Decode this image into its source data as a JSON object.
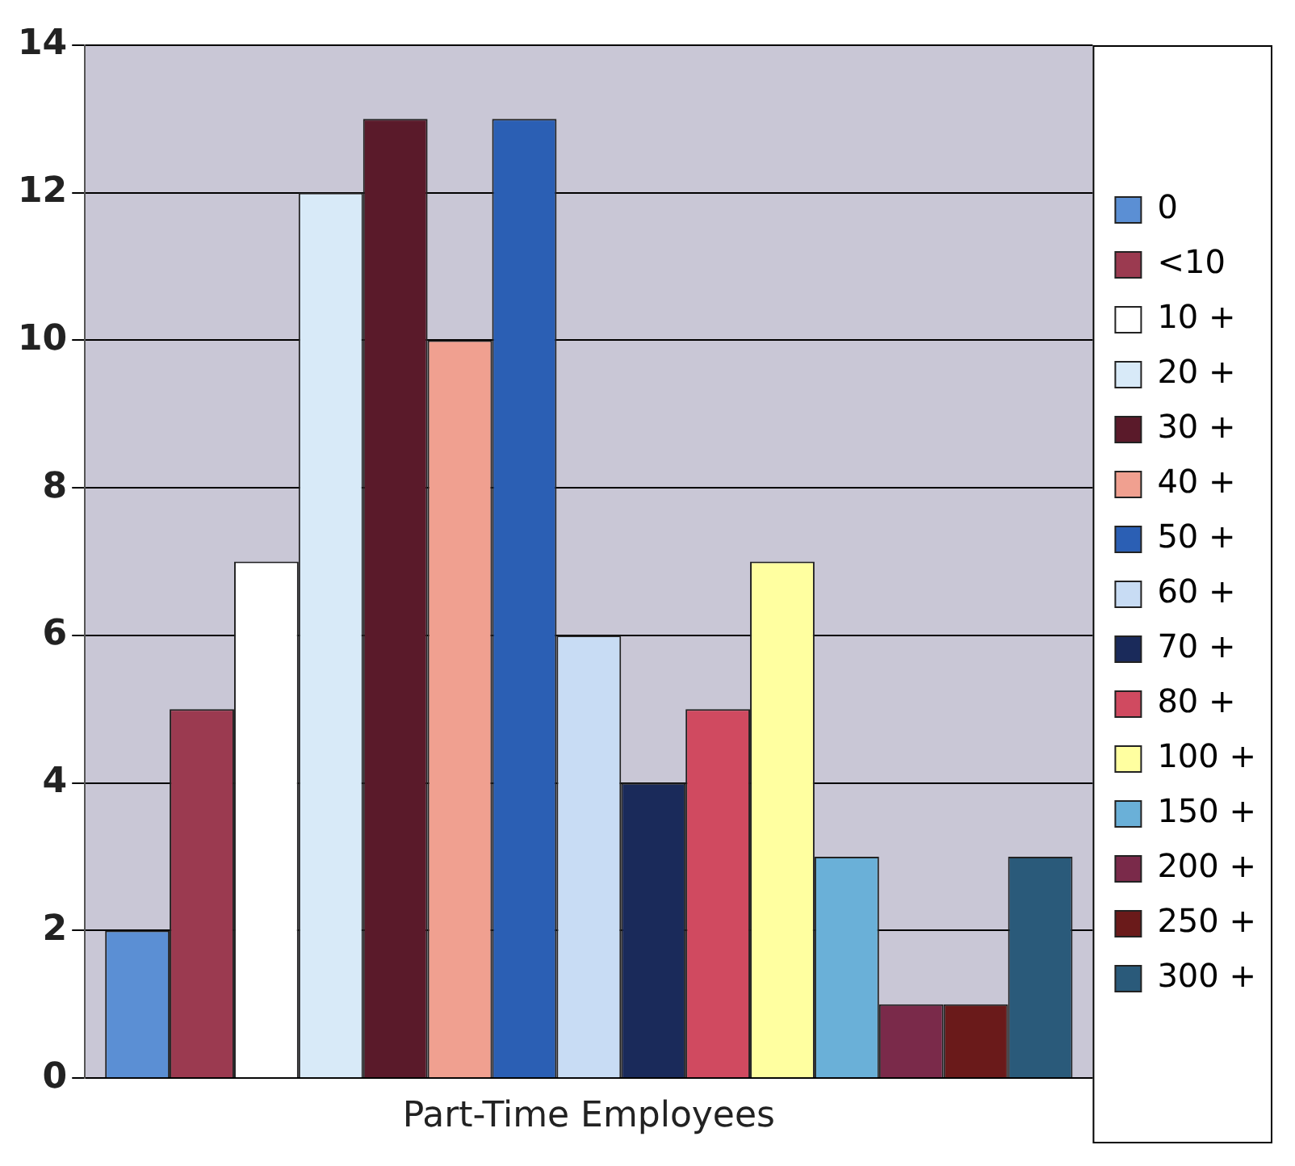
{
  "chart_data": {
    "type": "bar",
    "categories": [
      "Part-Time Employees"
    ],
    "series": [
      {
        "name": "0",
        "color": "#5b8fd4",
        "values": [
          2
        ]
      },
      {
        "name": "<10",
        "color": "#9b3a50",
        "values": [
          5
        ]
      },
      {
        "name": "10 +",
        "color": "#ffffff",
        "values": [
          7
        ]
      },
      {
        "name": "20 +",
        "color": "#d8eaf8",
        "values": [
          12
        ]
      },
      {
        "name": "30 +",
        "color": "#5a1a2a",
        "values": [
          13
        ]
      },
      {
        "name": "40 +",
        "color": "#f0a090",
        "values": [
          10
        ]
      },
      {
        "name": "50 +",
        "color": "#2b5fb4",
        "values": [
          13
        ]
      },
      {
        "name": "60 +",
        "color": "#c8dcf4",
        "values": [
          6
        ]
      },
      {
        "name": "70 +",
        "color": "#1a2a5a",
        "values": [
          4
        ]
      },
      {
        "name": "80 +",
        "color": "#d04a60",
        "values": [
          5
        ]
      },
      {
        "name": "100 +",
        "color": "#ffffa0",
        "values": [
          7
        ]
      },
      {
        "name": "150 +",
        "color": "#6ab0d8",
        "values": [
          3
        ]
      },
      {
        "name": "200 +",
        "color": "#7a2a4a",
        "values": [
          1
        ]
      },
      {
        "name": "250 +",
        "color": "#6a1a1a",
        "values": [
          1
        ]
      },
      {
        "name": "300 +",
        "color": "#2a5a7a",
        "values": [
          3
        ]
      }
    ],
    "ylim": [
      0,
      14
    ],
    "yticks": [
      0,
      2,
      4,
      6,
      8,
      10,
      12,
      14
    ],
    "grid": "y",
    "legend": "right"
  }
}
